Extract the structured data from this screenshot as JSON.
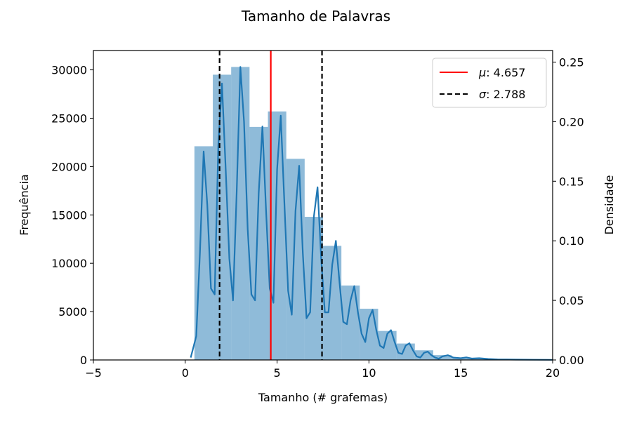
{
  "chart_data": {
    "type": "bar",
    "title": "Tamanho de Palavras",
    "xlabel": "Tamanho (# grafemas)",
    "ylabel": "Frequência",
    "y2label": "Densidade",
    "xlim": [
      -5,
      20
    ],
    "ylim": [
      0,
      32000
    ],
    "y2lim": [
      0,
      0.2597
    ],
    "xticks": [
      -5,
      0,
      5,
      10,
      15,
      20
    ],
    "yticks": [
      0,
      5000,
      10000,
      15000,
      20000,
      25000,
      30000
    ],
    "y2ticks": [
      "0.00",
      "0.05",
      "0.10",
      "0.15",
      "0.20",
      "0.25"
    ],
    "y2tick_values": [
      0,
      0.05,
      0.1,
      0.15,
      0.2,
      0.25
    ],
    "grid": false,
    "legend_position": "top-right",
    "histogram": {
      "bin_edges": [
        0.5,
        1.5,
        2.5,
        3.5,
        4.5,
        5.5,
        6.5,
        7.5,
        8.5,
        9.5,
        10.5,
        11.5,
        12.5,
        13.5,
        14.5,
        15.5,
        16.5,
        17.5,
        18.5,
        19.5,
        20.5
      ],
      "counts": [
        22100,
        29500,
        30300,
        24100,
        25700,
        20800,
        14800,
        11800,
        7700,
        5300,
        3000,
        1700,
        1000,
        500,
        250,
        120,
        60,
        30,
        15,
        8
      ],
      "color": "#1f77b4",
      "alpha": 0.5
    },
    "density_curve": {
      "name": "densidade",
      "color": "#1f77b4",
      "x": [
        0.3,
        0.6,
        0.8,
        1.0,
        1.2,
        1.4,
        1.6,
        1.8,
        2.0,
        2.2,
        2.4,
        2.6,
        2.8,
        3.0,
        3.2,
        3.4,
        3.6,
        3.8,
        4.0,
        4.2,
        4.4,
        4.6,
        4.8,
        5.0,
        5.2,
        5.4,
        5.6,
        5.8,
        6.0,
        6.2,
        6.4,
        6.6,
        6.8,
        7.0,
        7.2,
        7.4,
        7.6,
        7.8,
        8.0,
        8.2,
        8.4,
        8.6,
        8.8,
        9.0,
        9.2,
        9.4,
        9.6,
        9.8,
        10.0,
        10.2,
        10.4,
        10.6,
        10.8,
        11.0,
        11.2,
        11.4,
        11.6,
        11.8,
        12.0,
        12.2,
        12.4,
        12.6,
        12.8,
        13.0,
        13.2,
        13.4,
        13.6,
        13.8,
        14.0,
        14.3,
        14.6,
        15.0,
        15.3,
        15.6,
        16.0,
        16.5,
        17.0,
        18.0,
        19.0,
        20.0
      ],
      "y": [
        0.002,
        0.02,
        0.09,
        0.175,
        0.13,
        0.06,
        0.055,
        0.18,
        0.232,
        0.16,
        0.085,
        0.05,
        0.14,
        0.246,
        0.2,
        0.11,
        0.055,
        0.05,
        0.14,
        0.196,
        0.125,
        0.06,
        0.048,
        0.16,
        0.205,
        0.13,
        0.058,
        0.038,
        0.125,
        0.163,
        0.09,
        0.035,
        0.04,
        0.12,
        0.145,
        0.085,
        0.04,
        0.04,
        0.08,
        0.1,
        0.065,
        0.032,
        0.03,
        0.05,
        0.062,
        0.04,
        0.022,
        0.015,
        0.035,
        0.042,
        0.025,
        0.012,
        0.01,
        0.022,
        0.025,
        0.015,
        0.006,
        0.005,
        0.012,
        0.014,
        0.008,
        0.003,
        0.002,
        0.006,
        0.007,
        0.004,
        0.002,
        0.001,
        0.003,
        0.004,
        0.002,
        0.0015,
        0.0022,
        0.0012,
        0.0015,
        0.0008,
        0.0005,
        0.0003,
        0.0002,
        0.0001
      ]
    },
    "reference_lines": [
      {
        "name": "mu",
        "x": 4.657,
        "color": "#ff0000",
        "style": "solid"
      },
      {
        "name": "sigma-low",
        "x": 1.869,
        "color": "#000000",
        "style": "dashed"
      },
      {
        "name": "sigma-high",
        "x": 7.445,
        "color": "#000000",
        "style": "dashed"
      }
    ],
    "legend": [
      {
        "symbol": "μ",
        "value": "4.657",
        "color": "#ff0000",
        "style": "solid"
      },
      {
        "symbol": "σ",
        "value": "2.788",
        "color": "#000000",
        "style": "dashed"
      }
    ]
  }
}
